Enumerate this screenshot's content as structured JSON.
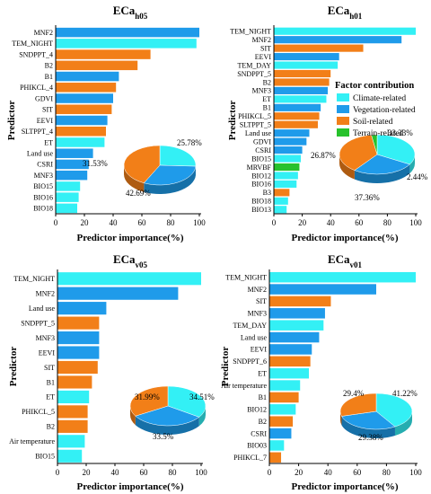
{
  "colors": {
    "climate": "#33F0F5",
    "vegetation": "#1F9BEA",
    "soil": "#F27F18",
    "terrain": "#27C22C"
  },
  "legend": {
    "title": "Factor contribution",
    "items": [
      {
        "label": "Climate-related",
        "key": "climate"
      },
      {
        "label": "Vegetation-related",
        "key": "vegetation"
      },
      {
        "label": "Soil-related",
        "key": "soil"
      },
      {
        "label": "Terrain-related",
        "key": "terrain"
      }
    ]
  },
  "chart_data": [
    {
      "type": "bar",
      "orientation": "horizontal",
      "title_main": "ECa",
      "title_sub": "h05",
      "ylabel": "Predictor",
      "xlabel": "Predictor importance(%)",
      "xlim": [
        0,
        100
      ],
      "xticks": [
        0,
        20,
        40,
        60,
        80,
        100
      ],
      "categories": [
        "MNF2",
        "TEM_NIGHT",
        "SNDPPT_4",
        "B2",
        "B1",
        "PHIKCL_4",
        "GDVI",
        "SIT",
        "EEVI",
        "SLTPPT_4",
        "ET",
        "Land use",
        "CSRI",
        "MNF3",
        "BIO15",
        "BIO16",
        "BIO18"
      ],
      "values": [
        100,
        98,
        66,
        57,
        44,
        42,
        40,
        39,
        36,
        35,
        34,
        26,
        23,
        22,
        17,
        16,
        15
      ],
      "factor": [
        "vegetation",
        "climate",
        "soil",
        "soil",
        "vegetation",
        "soil",
        "vegetation",
        "soil",
        "vegetation",
        "soil",
        "climate",
        "vegetation",
        "vegetation",
        "vegetation",
        "climate",
        "climate",
        "climate"
      ],
      "pie": {
        "slices": [
          {
            "key": "climate",
            "label": "25.78%",
            "value": 25.78
          },
          {
            "key": "vegetation",
            "label": "31.53%",
            "value": 31.53
          },
          {
            "key": "soil",
            "label": "42.69%",
            "value": 42.69
          }
        ]
      }
    },
    {
      "type": "bar",
      "orientation": "horizontal",
      "title_main": "ECa",
      "title_sub": "h01",
      "ylabel": "Predictor",
      "xlabel": "Predictor importance(%)",
      "xlim": [
        0,
        100
      ],
      "xticks": [
        0,
        20,
        40,
        60,
        80,
        100
      ],
      "categories": [
        "TEM_NIGHT",
        "MNF2",
        "SIT",
        "EEVI",
        "TEM_DAY",
        "SNDPPT_5",
        "B2",
        "MNF3",
        "ET",
        "B1",
        "PHIKCL_5",
        "SLTPPT_5",
        "Land use",
        "GDVI",
        "CSRI",
        "BIO15",
        "MRVBF",
        "BIO12",
        "BIO16",
        "B3",
        "BIO18",
        "BIO13"
      ],
      "values": [
        100,
        90,
        63,
        46,
        45,
        40,
        39,
        38,
        37,
        33,
        32,
        31,
        25,
        23,
        20,
        19,
        18,
        17,
        16,
        11,
        10,
        9
      ],
      "factor": [
        "climate",
        "vegetation",
        "soil",
        "vegetation",
        "climate",
        "soil",
        "soil",
        "vegetation",
        "climate",
        "vegetation",
        "soil",
        "soil",
        "vegetation",
        "vegetation",
        "vegetation",
        "climate",
        "terrain",
        "climate",
        "climate",
        "soil",
        "climate",
        "climate"
      ],
      "pie": {
        "slices": [
          {
            "key": "climate",
            "label": "33.33%",
            "value": 33.33
          },
          {
            "key": "vegetation",
            "label": "26.87%",
            "value": 26.87
          },
          {
            "key": "soil",
            "label": "37.36%",
            "value": 37.36
          },
          {
            "key": "terrain",
            "label": "2.44%",
            "value": 2.44
          }
        ]
      }
    },
    {
      "type": "bar",
      "orientation": "horizontal",
      "title_main": "ECa",
      "title_sub": "v05",
      "ylabel": "Predictor",
      "xlabel": "Predictor importance(%)",
      "xlim": [
        0,
        100
      ],
      "xticks": [
        0,
        20,
        40,
        60,
        80,
        100
      ],
      "categories": [
        "TEM_NIGHT",
        "MNF2",
        "Land use",
        "SNDPPT_5",
        "MNF3",
        "EEVI",
        "SIT",
        "B1",
        "ET",
        "PHIKCL_5",
        "B2",
        "Air temperature",
        "BIO15"
      ],
      "values": [
        100,
        84,
        34,
        29,
        29,
        29,
        28,
        24,
        22,
        21,
        21,
        19,
        17
      ],
      "factor": [
        "climate",
        "vegetation",
        "vegetation",
        "soil",
        "vegetation",
        "vegetation",
        "soil",
        "soil",
        "climate",
        "soil",
        "soil",
        "climate",
        "climate"
      ],
      "pie": {
        "slices": [
          {
            "key": "climate",
            "label": "34.51%",
            "value": 34.51
          },
          {
            "key": "vegetation",
            "label": "31.99%",
            "value": 31.99
          },
          {
            "key": "soil",
            "label": "33.5%",
            "value": 33.5
          }
        ]
      }
    },
    {
      "type": "bar",
      "orientation": "horizontal",
      "title_main": "ECa",
      "title_sub": "v01",
      "ylabel": "Predictor",
      "xlabel": "Predictor importance(%)",
      "xlim": [
        0,
        100
      ],
      "xticks": [
        0,
        20,
        40,
        60,
        80,
        100
      ],
      "categories": [
        "TEM_NIGHT",
        "MNF2",
        "SIT",
        "MNF3",
        "TEM_DAY",
        "Land use",
        "EEVI",
        "SNDPPT_6",
        "ET",
        "Air temperature",
        "B1",
        "BIO12",
        "B2",
        "CSRI",
        "BIO03",
        "PHIKCL_7"
      ],
      "values": [
        100,
        73,
        42,
        38,
        37,
        34,
        29,
        28,
        27,
        21,
        20,
        18,
        16,
        15,
        10,
        8
      ],
      "factor": [
        "climate",
        "vegetation",
        "soil",
        "vegetation",
        "climate",
        "vegetation",
        "vegetation",
        "soil",
        "climate",
        "climate",
        "soil",
        "climate",
        "soil",
        "vegetation",
        "climate",
        "soil"
      ],
      "pie": {
        "slices": [
          {
            "key": "climate",
            "label": "41.22%",
            "value": 41.22
          },
          {
            "key": "vegetation",
            "label": "29.4%",
            "value": 29.4
          },
          {
            "key": "soil",
            "label": "29.38%",
            "value": 29.38
          }
        ]
      }
    }
  ]
}
